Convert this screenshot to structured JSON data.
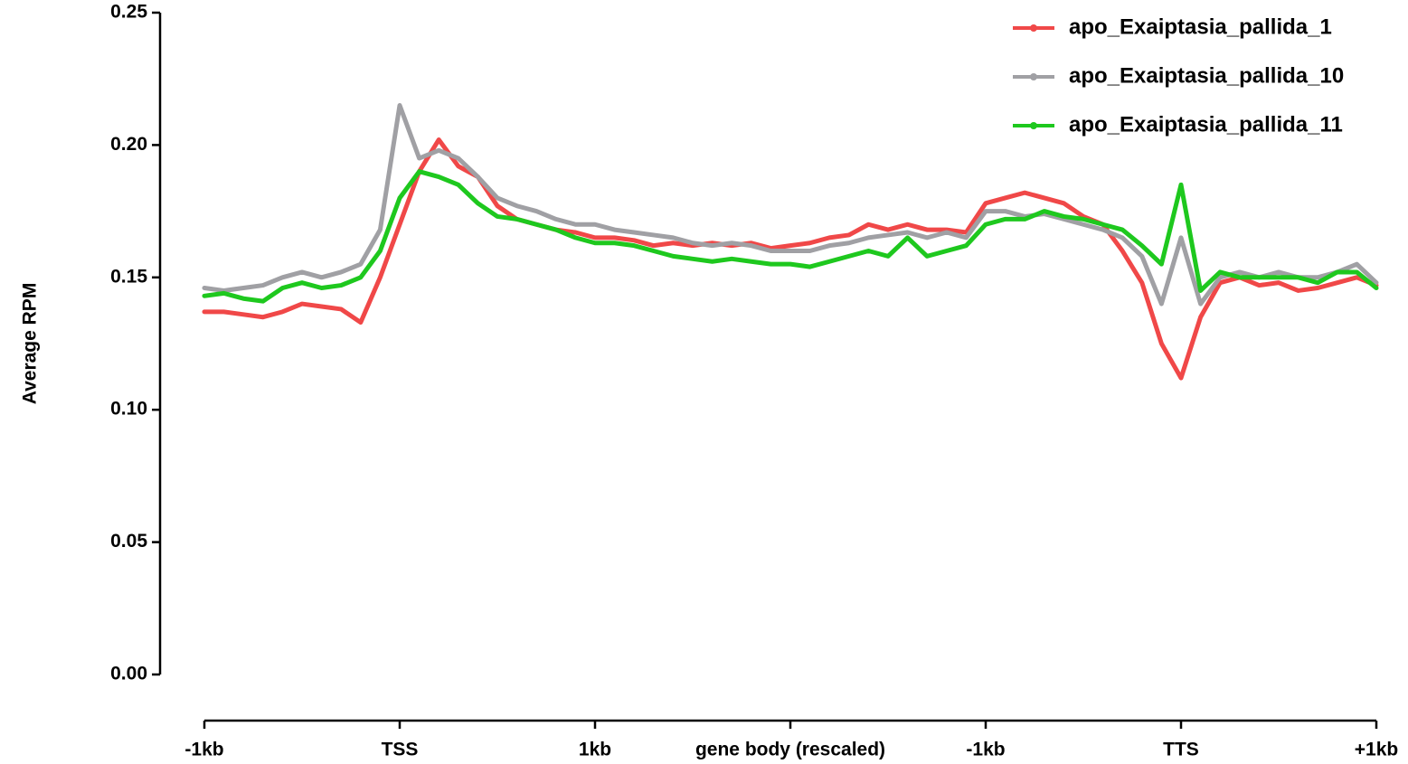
{
  "chart_data": {
    "type": "line",
    "y_label": "Average RPM",
    "x": [
      0,
      0.1,
      0.2,
      0.3,
      0.4,
      0.5,
      0.6,
      0.7,
      0.8,
      0.9,
      1,
      1.1,
      1.2,
      1.3,
      1.4,
      1.5,
      1.6,
      1.7,
      1.8,
      1.9,
      2,
      2.1,
      2.2,
      2.3,
      2.4,
      2.5,
      2.6,
      2.7,
      2.8,
      2.9,
      3,
      3.1,
      3.2,
      3.3,
      3.4,
      3.5,
      3.6,
      3.7,
      3.8,
      3.9,
      4,
      4.1,
      4.2,
      4.3,
      4.4,
      4.5,
      4.6,
      4.7,
      4.8,
      4.9,
      5,
      5.1,
      5.2,
      5.3,
      5.4,
      5.5,
      5.6,
      5.7,
      5.8,
      5.9,
      6
    ],
    "xlim": [
      0,
      6
    ],
    "xticks": [
      {
        "value": 0,
        "label": "-1kb"
      },
      {
        "value": 1,
        "label": "TSS"
      },
      {
        "value": 2,
        "label": "1kb"
      },
      {
        "value": 3,
        "label": "gene body (rescaled)"
      },
      {
        "value": 4,
        "label": "-1kb"
      },
      {
        "value": 5,
        "label": "TTS"
      },
      {
        "value": 6,
        "label": "+1kb"
      }
    ],
    "ylim": [
      0,
      0.25
    ],
    "yticks": [
      {
        "value": 0,
        "label": "0.00"
      },
      0.05,
      {
        "value": 0.1,
        "label": "0.10"
      },
      0.15,
      {
        "value": 0.2,
        "label": "0.20"
      },
      0.25
    ],
    "legend": "upper right",
    "series": [
      {
        "name": "apo_Exaiptasia_pallida_1",
        "color": "#f04848",
        "label_color": "#000000",
        "values": [
          0.137,
          0.137,
          0.136,
          0.135,
          0.137,
          0.14,
          0.139,
          0.138,
          0.133,
          0.15,
          0.17,
          0.19,
          0.202,
          0.192,
          0.188,
          0.177,
          0.172,
          0.17,
          0.168,
          0.167,
          0.165,
          0.165,
          0.164,
          0.162,
          0.163,
          0.162,
          0.163,
          0.162,
          0.163,
          0.161,
          0.162,
          0.163,
          0.165,
          0.166,
          0.17,
          0.168,
          0.17,
          0.168,
          0.168,
          0.167,
          0.178,
          0.18,
          0.182,
          0.18,
          0.178,
          0.173,
          0.17,
          0.16,
          0.148,
          0.125,
          0.112,
          0.135,
          0.148,
          0.15,
          0.147,
          0.148,
          0.145,
          0.146,
          0.148,
          0.15,
          0.147
        ]
      },
      {
        "name": "apo_Exaiptasia_pallida_10",
        "color": "#a0a0a4",
        "label_color": "#a0a0a4",
        "values": [
          0.146,
          0.145,
          0.146,
          0.147,
          0.15,
          0.152,
          0.15,
          0.152,
          0.155,
          0.168,
          0.215,
          0.195,
          0.198,
          0.195,
          0.188,
          0.18,
          0.177,
          0.175,
          0.172,
          0.17,
          0.17,
          0.168,
          0.167,
          0.166,
          0.165,
          0.163,
          0.162,
          0.163,
          0.162,
          0.16,
          0.16,
          0.16,
          0.162,
          0.163,
          0.165,
          0.166,
          0.167,
          0.165,
          0.167,
          0.165,
          0.175,
          0.175,
          0.173,
          0.174,
          0.172,
          0.17,
          0.168,
          0.165,
          0.158,
          0.14,
          0.165,
          0.14,
          0.15,
          0.152,
          0.15,
          0.152,
          0.15,
          0.15,
          0.152,
          0.155,
          0.148
        ]
      },
      {
        "name": "apo_Exaiptasia_pallida_11",
        "color": "#1ec81e",
        "label_color": "#1ec81e",
        "values": [
          0.143,
          0.144,
          0.142,
          0.141,
          0.146,
          0.148,
          0.146,
          0.147,
          0.15,
          0.16,
          0.18,
          0.19,
          0.188,
          0.185,
          0.178,
          0.173,
          0.172,
          0.17,
          0.168,
          0.165,
          0.163,
          0.163,
          0.162,
          0.16,
          0.158,
          0.157,
          0.156,
          0.157,
          0.156,
          0.155,
          0.155,
          0.154,
          0.156,
          0.158,
          0.16,
          0.158,
          0.165,
          0.158,
          0.16,
          0.162,
          0.17,
          0.172,
          0.172,
          0.175,
          0.173,
          0.172,
          0.17,
          0.168,
          0.162,
          0.155,
          0.185,
          0.145,
          0.152,
          0.15,
          0.15,
          0.15,
          0.15,
          0.148,
          0.152,
          0.152,
          0.146
        ]
      }
    ]
  }
}
